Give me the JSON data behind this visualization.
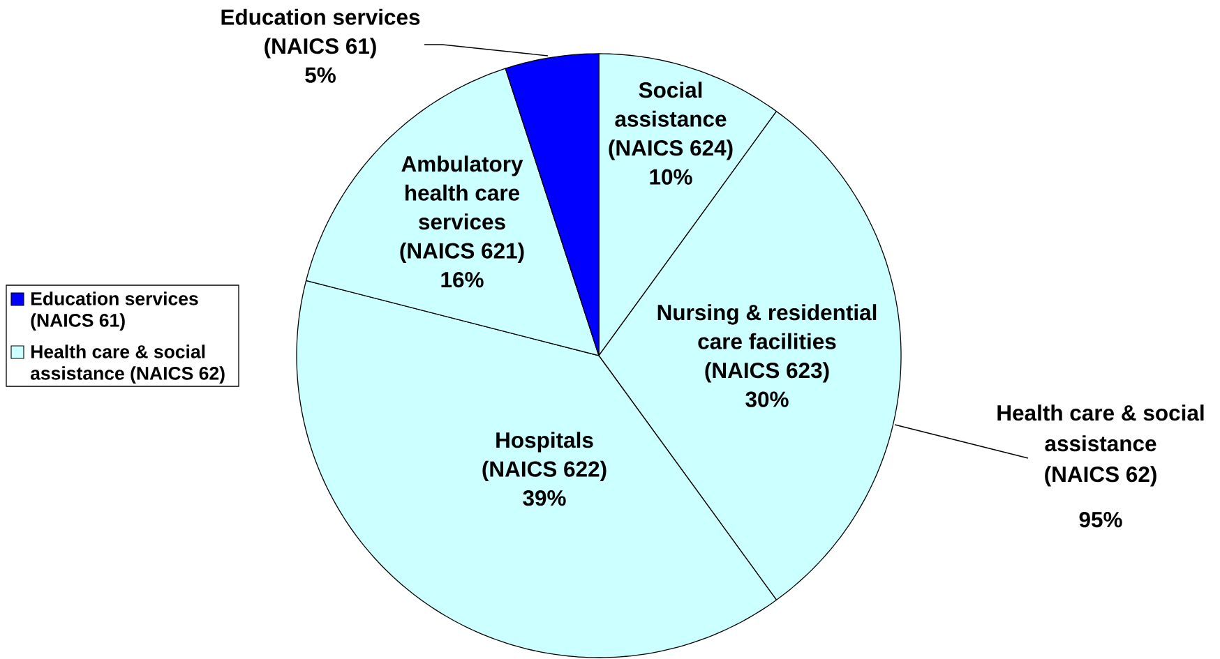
{
  "chart_data": {
    "type": "pie",
    "categories": [
      "Social assistance (NAICS 624)",
      "Nursing & residential care facilities (NAICS 623)",
      "Hospitals (NAICS 622)",
      "Ambulatory health care services (NAICS 621)",
      "Education services (NAICS 61)"
    ],
    "values": [
      10,
      30,
      39,
      16,
      5
    ],
    "colors": [
      "#ccffff",
      "#ccffff",
      "#ccffff",
      "#ccffff",
      "#0000ff"
    ],
    "value_labels": [
      "10%",
      "30%",
      "39%",
      "16%",
      "5%"
    ],
    "annotations": [
      "Health care & social assistance (NAICS 62)",
      "95%"
    ],
    "legend": "left"
  }
}
